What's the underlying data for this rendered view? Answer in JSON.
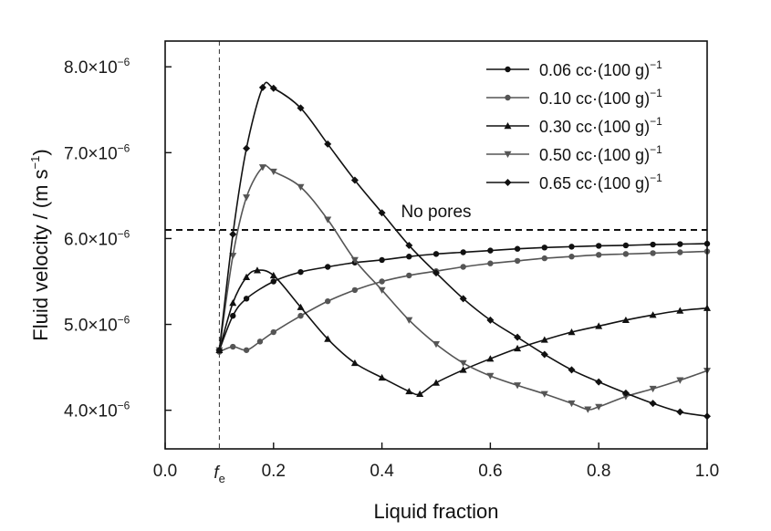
{
  "chart_data": {
    "type": "line",
    "xlabel": "Liquid fraction",
    "ylabel_main": "Fluid velocity / (m s",
    "ylabel_sup": "−1",
    "ylabel_close": ")",
    "xlim": [
      0.0,
      1.0
    ],
    "ylim": [
      3.55e-06,
      8.3e-06
    ],
    "x_ticks": [
      {
        "value": 0.0,
        "label": "0.0"
      },
      {
        "value": 0.2,
        "label": "0.2"
      },
      {
        "value": 0.4,
        "label": "0.4"
      },
      {
        "value": 0.6,
        "label": "0.6"
      },
      {
        "value": 0.8,
        "label": "0.8"
      },
      {
        "value": 1.0,
        "label": "1.0"
      }
    ],
    "y_ticks": [
      {
        "value": 4e-06,
        "label": "4.0×10",
        "exp": "−6"
      },
      {
        "value": 5e-06,
        "label": "5.0×10",
        "exp": "−6"
      },
      {
        "value": 6e-06,
        "label": "6.0×10",
        "exp": "−6"
      },
      {
        "value": 7e-06,
        "label": "7.0×10",
        "exp": "−6"
      },
      {
        "value": 8e-06,
        "label": "8.0×10",
        "exp": "−6"
      }
    ],
    "fe_marker": {
      "x": 0.1,
      "label": "f",
      "sub": "e"
    },
    "reference_line": {
      "y": 6.1e-06,
      "label": "No pores"
    },
    "legend_position": "top-right",
    "series": [
      {
        "name": "0.06 cc·(100 g)",
        "name_sup": "−1",
        "marker": "circle",
        "color": "#111111",
        "x": [
          0.1,
          0.125,
          0.15,
          0.2,
          0.25,
          0.3,
          0.35,
          0.4,
          0.45,
          0.5,
          0.55,
          0.6,
          0.65,
          0.7,
          0.75,
          0.8,
          0.85,
          0.9,
          0.95,
          1.0
        ],
        "y": [
          4.7e-06,
          5.1e-06,
          5.3e-06,
          5.5e-06,
          5.61e-06,
          5.67e-06,
          5.72e-06,
          5.75e-06,
          5.79e-06,
          5.82e-06,
          5.84e-06,
          5.86e-06,
          5.88e-06,
          5.895e-06,
          5.905e-06,
          5.915e-06,
          5.92e-06,
          5.93e-06,
          5.935e-06,
          5.94e-06
        ]
      },
      {
        "name": "0.10 cc·(100 g)",
        "name_sup": "−1",
        "marker": "circle",
        "color": "#555555",
        "x": [
          0.1,
          0.125,
          0.15,
          0.175,
          0.2,
          0.25,
          0.3,
          0.35,
          0.4,
          0.45,
          0.5,
          0.55,
          0.6,
          0.65,
          0.7,
          0.75,
          0.8,
          0.85,
          0.9,
          0.95,
          1.0
        ],
        "y": [
          4.68e-06,
          4.74e-06,
          4.7e-06,
          4.8e-06,
          4.91e-06,
          5.1e-06,
          5.27e-06,
          5.4e-06,
          5.5e-06,
          5.57e-06,
          5.62e-06,
          5.67e-06,
          5.71e-06,
          5.74e-06,
          5.77e-06,
          5.79e-06,
          5.81e-06,
          5.82e-06,
          5.83e-06,
          5.84e-06,
          5.85e-06
        ]
      },
      {
        "name": "0.30 cc·(100 g)",
        "name_sup": "−1",
        "marker": "triangle-up",
        "color": "#111111",
        "x": [
          0.1,
          0.125,
          0.15,
          0.17,
          0.2,
          0.25,
          0.3,
          0.35,
          0.4,
          0.45,
          0.47,
          0.5,
          0.55,
          0.6,
          0.65,
          0.7,
          0.75,
          0.8,
          0.85,
          0.9,
          0.95,
          1.0
        ],
        "y": [
          4.7e-06,
          5.25e-06,
          5.55e-06,
          5.63e-06,
          5.57e-06,
          5.2e-06,
          4.83e-06,
          4.55e-06,
          4.38e-06,
          4.22e-06,
          4.19e-06,
          4.32e-06,
          4.47e-06,
          4.6e-06,
          4.72e-06,
          4.82e-06,
          4.91e-06,
          4.98e-06,
          5.05e-06,
          5.11e-06,
          5.16e-06,
          5.19e-06
        ]
      },
      {
        "name": "0.50 cc·(100 g)",
        "name_sup": "−1",
        "marker": "triangle-down",
        "color": "#555555",
        "x": [
          0.1,
          0.125,
          0.15,
          0.18,
          0.2,
          0.25,
          0.3,
          0.35,
          0.4,
          0.45,
          0.5,
          0.55,
          0.6,
          0.65,
          0.7,
          0.75,
          0.78,
          0.8,
          0.85,
          0.9,
          0.95,
          1.0
        ],
        "y": [
          4.7e-06,
          5.8e-06,
          6.48e-06,
          6.83e-06,
          6.78e-06,
          6.6e-06,
          6.22e-06,
          5.75e-06,
          5.4e-06,
          5.05e-06,
          4.77e-06,
          4.55e-06,
          4.4e-06,
          4.29e-06,
          4.19e-06,
          4.08e-06,
          4.01e-06,
          4.04e-06,
          4.16e-06,
          4.25e-06,
          4.35e-06,
          4.46e-06
        ]
      },
      {
        "name": "0.65 cc·(100 g)",
        "name_sup": "−1",
        "marker": "diamond",
        "color": "#111111",
        "x": [
          0.1,
          0.125,
          0.15,
          0.18,
          0.2,
          0.25,
          0.3,
          0.35,
          0.4,
          0.45,
          0.5,
          0.55,
          0.6,
          0.65,
          0.7,
          0.75,
          0.8,
          0.85,
          0.9,
          0.95,
          1.0
        ],
        "y": [
          4.7e-06,
          6.05e-06,
          7.05e-06,
          7.76e-06,
          7.75e-06,
          7.52e-06,
          7.1e-06,
          6.68e-06,
          6.3e-06,
          5.92e-06,
          5.6e-06,
          5.3e-06,
          5.05e-06,
          4.85e-06,
          4.65e-06,
          4.47e-06,
          4.33e-06,
          4.2e-06,
          4.08e-06,
          3.98e-06,
          3.93e-06
        ]
      }
    ]
  }
}
